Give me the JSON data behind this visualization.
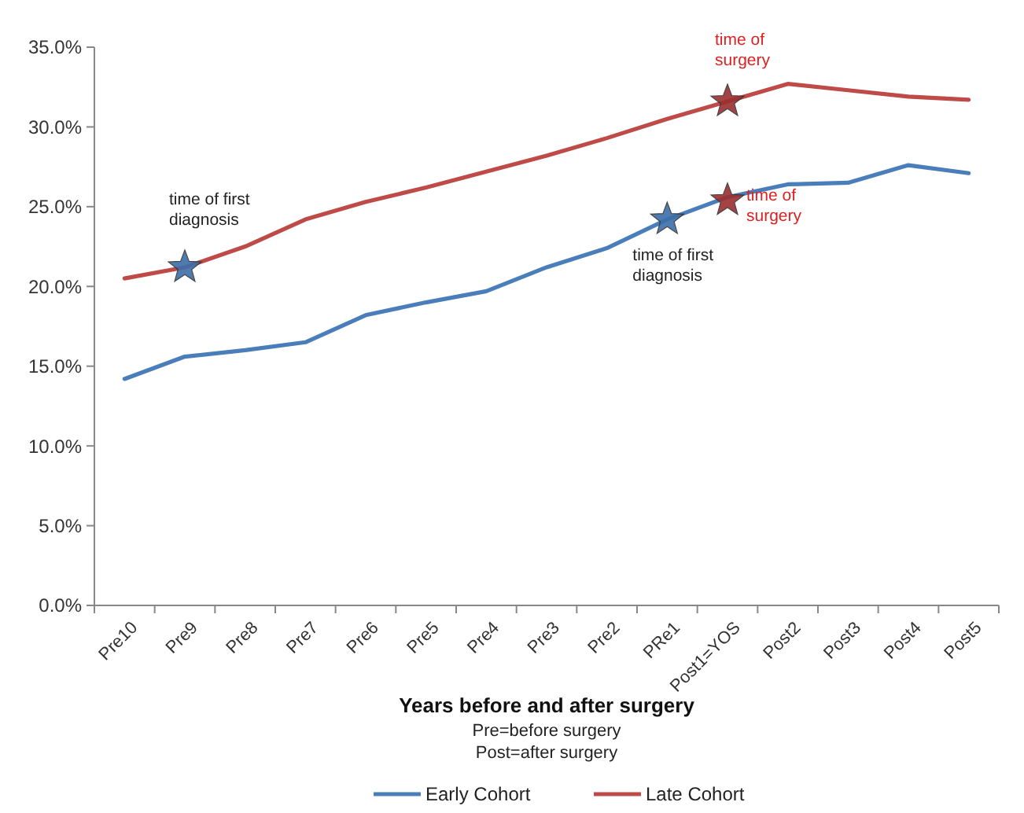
{
  "chart_data": {
    "type": "line",
    "xlabel": "Years before and after surgery",
    "categories": [
      "Pre10",
      "Pre9",
      "Pre8",
      "Pre7",
      "Pre6",
      "Pre5",
      "Pre4",
      "Pre3",
      "Pre2",
      "PRe1",
      "Post1=YOS",
      "Post2",
      "Post3",
      "Post4",
      "Post5"
    ],
    "series": [
      {
        "name": "Early Cohort",
        "color": "#4a7ebb",
        "values": [
          14.2,
          15.6,
          16.0,
          16.5,
          18.2,
          19.0,
          19.7,
          21.2,
          22.4,
          24.2,
          25.6,
          26.4,
          26.5,
          27.6,
          27.1
        ]
      },
      {
        "name": "Late Cohort",
        "color": "#be4b48",
        "values": [
          20.5,
          21.2,
          22.5,
          24.2,
          25.3,
          26.2,
          27.2,
          28.2,
          29.3,
          30.5,
          31.6,
          32.7,
          32.3,
          31.9,
          31.7
        ]
      }
    ],
    "ylim": [
      0,
      35
    ],
    "yticks": [
      {
        "value": 0,
        "label": "0.0%"
      },
      {
        "value": 5,
        "label": "5.0%"
      },
      {
        "value": 10,
        "label": "10.0%"
      },
      {
        "value": 15,
        "label": "15.0%"
      },
      {
        "value": 20,
        "label": "20.0%"
      },
      {
        "value": 25,
        "label": "25.0%"
      },
      {
        "value": 30,
        "label": "30.0%"
      },
      {
        "value": 35,
        "label": "35.0%"
      }
    ],
    "annotations": [
      {
        "text": "time of first diagnosis",
        "x": "Pre9",
        "y": 21.2
      },
      {
        "text": "time of first diagnosis",
        "x": "PRe1",
        "y": 24.2
      },
      {
        "text": "time of surgery",
        "x": "Post1=YOS",
        "y": 31.6
      },
      {
        "text": "time of surgery",
        "x": "Post1=YOS",
        "y": 25.4
      },
      "Pre=before surgery",
      "Post=after surgery"
    ],
    "grid": false,
    "legend": "bottom",
    "marker": "none",
    "line_style": "solid"
  }
}
